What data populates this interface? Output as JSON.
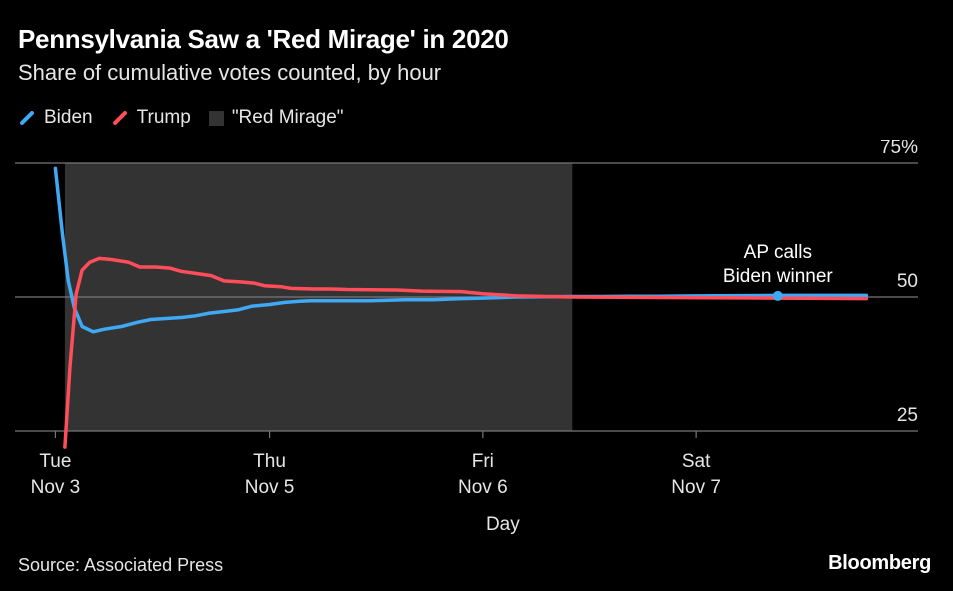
{
  "header": {
    "title": "Pennsylvania Saw a 'Red Mirage' in 2020",
    "subtitle": "Share of cumulative votes counted, by hour"
  },
  "legend": {
    "items": [
      {
        "label": "Biden",
        "color": "#3fa9f5"
      },
      {
        "label": "Trump",
        "color": "#ff4d5a"
      },
      {
        "label": "\"Red Mirage\"",
        "color": "#333333"
      }
    ]
  },
  "footer": {
    "source": "Source: Associated Press",
    "brand": "Bloomberg"
  },
  "chart_data": {
    "type": "line",
    "xlabel": "Day",
    "ylabel": "",
    "ylim": [
      25,
      75
    ],
    "xlim": [
      0,
      100
    ],
    "y_ticks": [
      {
        "value": 75,
        "label": "75%"
      },
      {
        "value": 50,
        "label": "50"
      },
      {
        "value": 25,
        "label": "25"
      }
    ],
    "x_ticks": [
      {
        "x": 4.7,
        "label": [
          "Tue",
          "Nov 3"
        ]
      },
      {
        "x": 29.6,
        "label": [
          "Thu",
          "Nov 5"
        ]
      },
      {
        "x": 54.4,
        "label": [
          "Fri",
          "Nov 6"
        ]
      },
      {
        "x": 79.2,
        "label": [
          "Sat",
          "Nov 7"
        ]
      }
    ],
    "shaded_region": {
      "label": "\"Red Mirage\"",
      "x_start": 5.8,
      "x_end": 64.8,
      "color": "#333333"
    },
    "gridlines": [
      75,
      50,
      25
    ],
    "series": [
      {
        "name": "Biden",
        "color": "#3fa9f5",
        "points": [
          [
            4.7,
            74
          ],
          [
            5.5,
            62
          ],
          [
            6.2,
            53
          ],
          [
            6.9,
            48
          ],
          [
            7.8,
            44.5
          ],
          [
            9.1,
            43.5
          ],
          [
            10.4,
            44
          ],
          [
            12.4,
            44.5
          ],
          [
            14.3,
            45.3
          ],
          [
            15.8,
            45.8
          ],
          [
            17.8,
            46
          ],
          [
            19.5,
            46.2
          ],
          [
            21,
            46.5
          ],
          [
            22.6,
            47
          ],
          [
            24.3,
            47.3
          ],
          [
            25.9,
            47.6
          ],
          [
            27.6,
            48.3
          ],
          [
            29.6,
            48.6
          ],
          [
            31.4,
            49
          ],
          [
            33.1,
            49.2
          ],
          [
            34.4,
            49.3
          ],
          [
            41.4,
            49.3
          ],
          [
            43.4,
            49.4
          ],
          [
            45.3,
            49.5
          ],
          [
            48.6,
            49.5
          ],
          [
            51.9,
            49.7
          ],
          [
            54.4,
            49.8
          ],
          [
            58.3,
            50
          ],
          [
            64.8,
            50.1
          ],
          [
            68,
            50.1
          ],
          [
            71.4,
            50.15
          ],
          [
            74.7,
            50.15
          ],
          [
            79.2,
            50.2
          ],
          [
            88.7,
            50.3
          ],
          [
            99,
            50.3
          ]
        ]
      },
      {
        "name": "Trump",
        "color": "#ff4d5a",
        "points": [
          [
            5.8,
            22
          ],
          [
            6.4,
            37
          ],
          [
            7.1,
            50.5
          ],
          [
            7.8,
            55
          ],
          [
            8.7,
            56.5
          ],
          [
            9.8,
            57.2
          ],
          [
            11.2,
            57
          ],
          [
            13.2,
            56.5
          ],
          [
            14.5,
            55.6
          ],
          [
            16.4,
            55.6
          ],
          [
            18,
            55.4
          ],
          [
            19.3,
            54.8
          ],
          [
            21,
            54.4
          ],
          [
            22.8,
            54
          ],
          [
            24.3,
            53
          ],
          [
            26.4,
            52.8
          ],
          [
            27.8,
            52.6
          ],
          [
            29,
            52.1
          ],
          [
            31,
            51.9
          ],
          [
            32.1,
            51.6
          ],
          [
            34.8,
            51.5
          ],
          [
            36.8,
            51.5
          ],
          [
            38.6,
            51.4
          ],
          [
            44.4,
            51.3
          ],
          [
            47.3,
            51.1
          ],
          [
            51.9,
            51
          ],
          [
            54.4,
            50.6
          ],
          [
            58.3,
            50.2
          ],
          [
            64.8,
            50
          ],
          [
            74.7,
            49.9
          ],
          [
            88.7,
            49.8
          ],
          [
            99,
            49.7
          ]
        ]
      }
    ],
    "annotations": [
      {
        "text": [
          "AP calls",
          "Biden winner"
        ],
        "x": 88.7,
        "y": 50.2
      }
    ]
  }
}
